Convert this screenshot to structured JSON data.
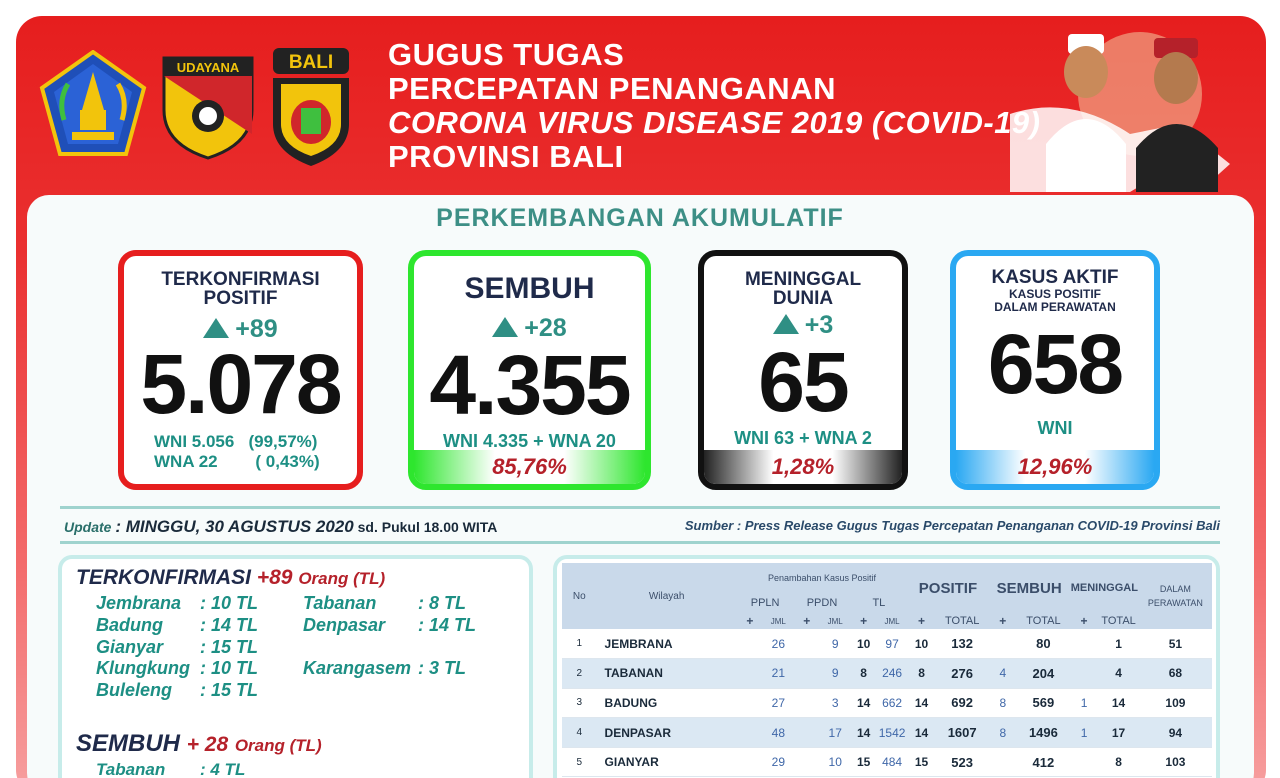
{
  "header": {
    "title_lines": [
      "GUGUS TUGAS",
      "PERCEPATAN PENANGANAN",
      "CORONA VIRUS DISEASE 2019 (COVID-19)",
      "PROVINSI BALI"
    ],
    "logo_udayana": "UDAYANA",
    "logo_bali": "BALI"
  },
  "section_title": "PERKEMBANGAN AKUMULATIF",
  "cards": {
    "positif": {
      "line1": "TERKONFIRMASI",
      "line2": "POSITIF",
      "delta": "+89",
      "value": "5.078",
      "wni": "WNI 5.056",
      "wni_pct": "(99,57%)",
      "wna": "WNA 22",
      "wna_pct": "( 0,43%)",
      "color": "#e61e1e"
    },
    "sembuh": {
      "label": "SEMBUH",
      "delta": "+28",
      "value": "4.355",
      "sub": "WNI 4.335 + WNA 20",
      "pct": "85,76%",
      "color": "#2ee62e"
    },
    "meninggal": {
      "line1": "MENINGGAL",
      "line2": "DUNIA",
      "delta": "+3",
      "value": "65",
      "sub": "WNI 63 + WNA 2",
      "pct": "1,28%",
      "color": "#111111"
    },
    "aktif": {
      "line1": "KASUS AKTIF",
      "line2": "KASUS POSITIF",
      "line3": "DALAM PERAWATAN",
      "value": "658",
      "sub": "WNI",
      "pct": "12,96%",
      "color": "#2aa8f2"
    }
  },
  "update": {
    "label": "Update",
    "date": ": MINGGU, 30 AGUSTUS 2020",
    "time": "sd. Pukul 18.00 WITA",
    "source": "Sumber :  Press Release Gugus Tugas Percepatan Penanganan COVID-19 Provinsi Bali"
  },
  "left": {
    "konf_label": "TERKONFIRMASI",
    "konf_delta": "+89",
    "konf_unit": "Orang (TL)",
    "konf_rows": [
      {
        "name": "Jembrana",
        "val": ": 10 TL"
      },
      {
        "name": "Badung",
        "val": ": 14 TL"
      },
      {
        "name": "Gianyar",
        "val": ": 15 TL"
      },
      {
        "name": "Klungkung",
        "val": ": 10 TL"
      },
      {
        "name": "Buleleng",
        "val": ": 15 TL"
      },
      {
        "name": "Tabanan",
        "val": ": 8 TL"
      },
      {
        "name": "Denpasar",
        "val": ": 14 TL"
      },
      {
        "name": "Karangasem",
        "val": ": 3 TL"
      }
    ],
    "sembuh_label": "SEMBUH",
    "sembuh_delta": "+ 28",
    "sembuh_unit": "Orang (TL)",
    "sembuh_rows": [
      {
        "name": "Tabanan",
        "val": ": 4 TL"
      }
    ]
  },
  "table": {
    "h_no": "No",
    "h_wilayah": "Wilayah",
    "h_penambahan": "Penambahan Kasus Positif",
    "h_pp": "PPLN",
    "h_pd": "PPDN",
    "h_tl": "TL",
    "h_positif": "POSITIF",
    "h_sembuh": "SEMBUH",
    "h_meninggal": "MENINGGAL",
    "h_dalam": "DALAM",
    "h_perawatan": "PERAWATAN",
    "h_plus": "+",
    "h_jml": "JML",
    "h_total": "TOTAL",
    "rows": [
      {
        "no": "1",
        "name": "JEMBRANA",
        "pp": "",
        "ppj": "26",
        "pd": "",
        "pdj": "9",
        "tl": "10",
        "tlj": "97",
        "pos": "10",
        "post": "132",
        "sem": "",
        "semt": "80",
        "men": "",
        "ment": "1",
        "dal": "51"
      },
      {
        "no": "2",
        "name": "TABANAN",
        "pp": "",
        "ppj": "21",
        "pd": "",
        "pdj": "9",
        "tl": "8",
        "tlj": "246",
        "pos": "8",
        "post": "276",
        "sem": "4",
        "semt": "204",
        "men": "",
        "ment": "4",
        "dal": "68"
      },
      {
        "no": "3",
        "name": "BADUNG",
        "pp": "",
        "ppj": "27",
        "pd": "",
        "pdj": "3",
        "tl": "14",
        "tlj": "662",
        "pos": "14",
        "post": "692",
        "sem": "8",
        "semt": "569",
        "men": "1",
        "ment": "14",
        "dal": "109"
      },
      {
        "no": "4",
        "name": "DENPASAR",
        "pp": "",
        "ppj": "48",
        "pd": "",
        "pdj": "17",
        "tl": "14",
        "tlj": "1542",
        "pos": "14",
        "post": "1607",
        "sem": "8",
        "semt": "1496",
        "men": "1",
        "ment": "17",
        "dal": "94"
      },
      {
        "no": "5",
        "name": "GIANYAR",
        "pp": "",
        "ppj": "29",
        "pd": "",
        "pdj": "10",
        "tl": "15",
        "tlj": "484",
        "pos": "15",
        "post": "523",
        "sem": "",
        "semt": "412",
        "men": "",
        "ment": "8",
        "dal": "103"
      }
    ]
  }
}
